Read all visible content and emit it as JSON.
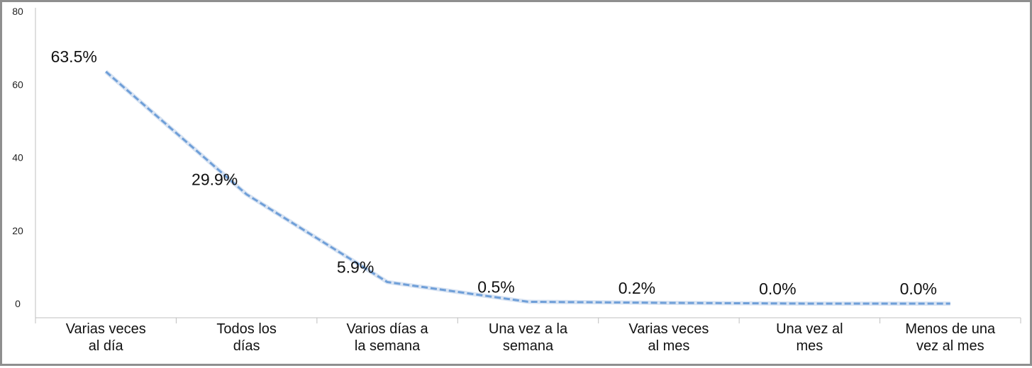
{
  "chart_data": {
    "type": "line",
    "title": "",
    "xlabel": "",
    "ylabel": "",
    "ylim": [
      0,
      80
    ],
    "yticks": [
      0,
      20,
      40,
      60,
      80
    ],
    "grid": false,
    "legend": "none",
    "categories": [
      [
        "Varias veces",
        "al día"
      ],
      [
        "Todos los",
        "días"
      ],
      [
        "Varios días a",
        "la semana"
      ],
      [
        "Una vez a la",
        "semana"
      ],
      [
        "Varias veces",
        "al mes"
      ],
      [
        "Una vez al",
        "mes"
      ],
      [
        "Menos de una",
        "vez al mes"
      ]
    ],
    "series": [
      {
        "values": [
          63.5,
          29.9,
          5.9,
          0.5,
          0.2,
          0.0,
          0.0
        ],
        "labels": [
          "63.5%",
          "29.9%",
          "5.9%",
          "0.5%",
          "0.2%",
          "0.0%",
          "0.0%"
        ],
        "color": "#6f9fd8",
        "line_style": "dashed"
      }
    ]
  }
}
